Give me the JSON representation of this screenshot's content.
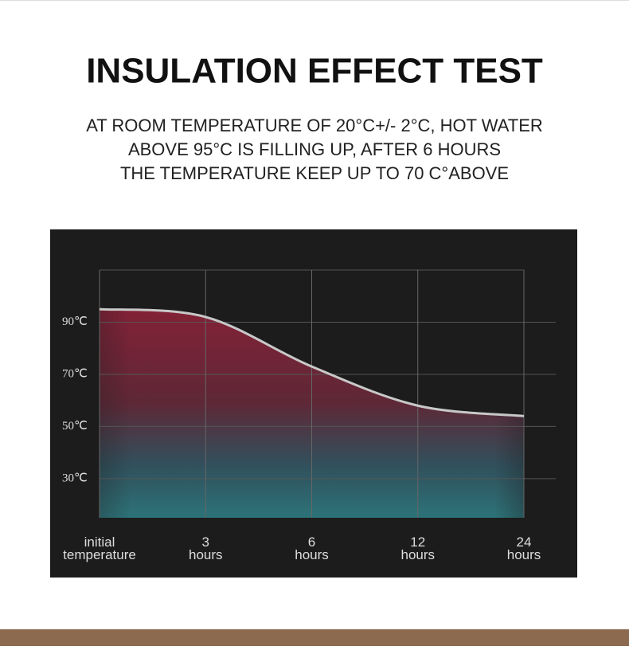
{
  "chart_data": {
    "type": "line",
    "title": "INSULATION EFFECT TEST",
    "subtitle": [
      "AT ROOM TEMPERATURE OF 20°C+/- 2°C, HOT WATER",
      "ABOVE 95°C IS FILLING UP, AFTER 6 HOURS",
      "THE TEMPERATURE KEEP UP TO 70 C°ABOVE"
    ],
    "categories": [
      "initial temperature",
      "3 hours",
      "6 hours",
      "12 hours",
      "24 hours"
    ],
    "values": [
      95,
      92,
      73,
      58,
      54
    ],
    "color": "#c8c8c8",
    "ylim": [
      15,
      110
    ],
    "yticks": [
      {
        "value": 30,
        "label": "30℃"
      },
      {
        "value": 50,
        "label": "50℃"
      },
      {
        "value": 70,
        "label": "70℃"
      },
      {
        "value": 90,
        "label": "90℃"
      }
    ],
    "grid": true
  }
}
